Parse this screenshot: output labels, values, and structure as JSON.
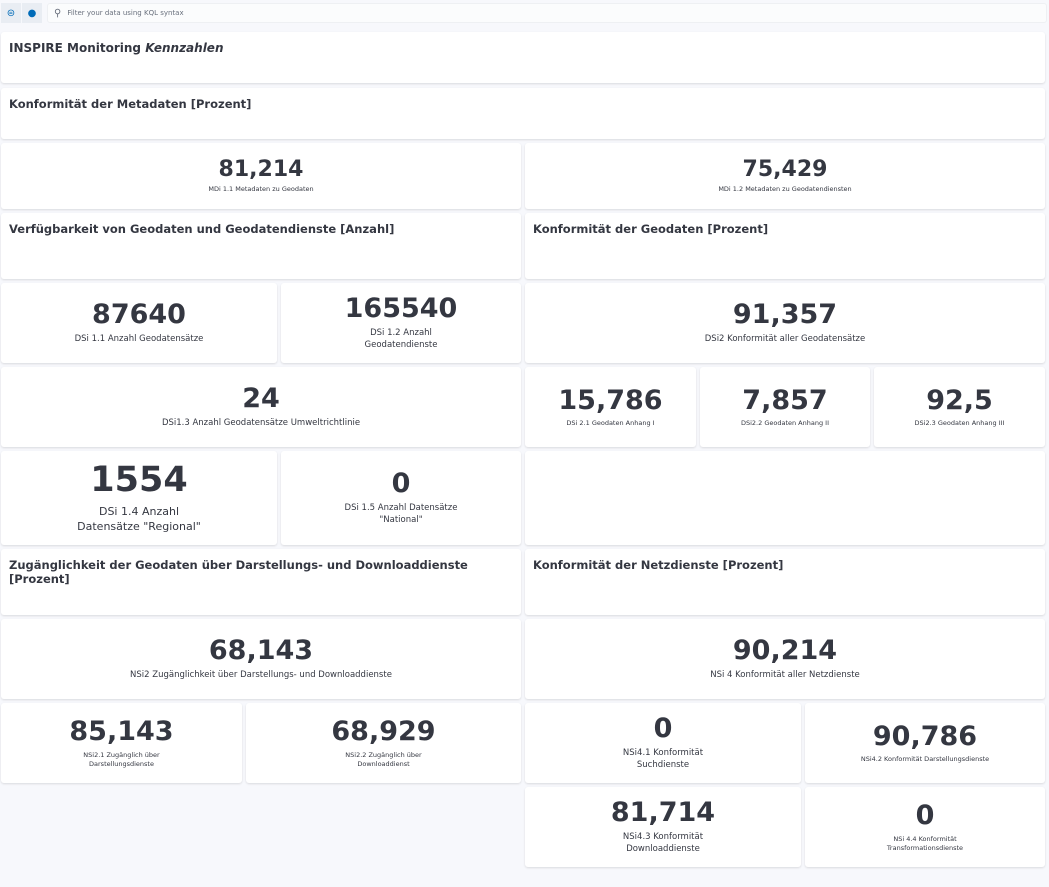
{
  "toolbar": {
    "search_placeholder": "Filter your data using KQL syntax"
  },
  "title": {
    "main": "INSPIRE Monitoring ",
    "italic": "Kennzahlen"
  },
  "sections": {
    "metadaten": "Konformität der Metadaten [Prozent]",
    "verfuegbarkeit": "Verfügbarkeit von Geodaten und Geodatendienste [Anzahl]",
    "geodaten": "Konformität der Geodaten [Prozent]",
    "zugaenglichkeit": "Zugänglichkeit der Geodaten über Darstellungs- und Downloaddienste [Prozent]",
    "netzdienste": "Konformität der Netzdienste [Prozent]"
  },
  "metrics": [
    {
      "value": "81,214",
      "label": "MDi 1.1 Metadaten zu Geodaten"
    },
    {
      "value": "75,429",
      "label": "MDi 1.2 Metadaten zu Geodatendiensten"
    },
    {
      "value": "87640",
      "label": "DSi 1.1 Anzahl Geodatensätze"
    },
    {
      "value": "165540",
      "label": "DSi 1.2 Anzahl Geodatendienste"
    },
    {
      "value": "91,357",
      "label": "DSi2 Konformität aller Geodatensätze"
    },
    {
      "value": "24",
      "label": "DSi1.3 Anzahl Geodatensätze Umweltrichtlinie"
    },
    {
      "value": "15,786",
      "label": "DSi 2.1 Geodaten Anhang I"
    },
    {
      "value": "7,857",
      "label": "DSi2.2 Geodaten Anhang II"
    },
    {
      "value": "92,5",
      "label": "DSi2.3 Geodaten Anhang III"
    },
    {
      "value": "1554",
      "label": "DSi 1.4 Anzahl Datensätze \"Regional\""
    },
    {
      "value": "0",
      "label": "DSi 1.5 Anzahl Datensätze \"National\""
    },
    {
      "value": "68,143",
      "label": "NSi2 Zugänglichkeit über Darstellungs- und Downloaddienste"
    },
    {
      "value": "90,214",
      "label": "NSi 4 Konformität aller Netzdienste"
    },
    {
      "value": "85,143",
      "label": "NSi2.1 Zugänglich über Darstellungsdienste"
    },
    {
      "value": "68,929",
      "label": "NSi2.2 Zugänglich über Downloaddienst"
    },
    {
      "value": "0",
      "label": "NSi4.1 Konformität Suchdienste"
    },
    {
      "value": "90,786",
      "label": "NSi4.2 Konformität Darstellungsdienste"
    },
    {
      "value": "81,714",
      "label": "NSi4.3 Konformität Downloaddienste"
    },
    {
      "value": "0",
      "label": "NSi 4.4 Konformität Transformationsdienste"
    }
  ]
}
